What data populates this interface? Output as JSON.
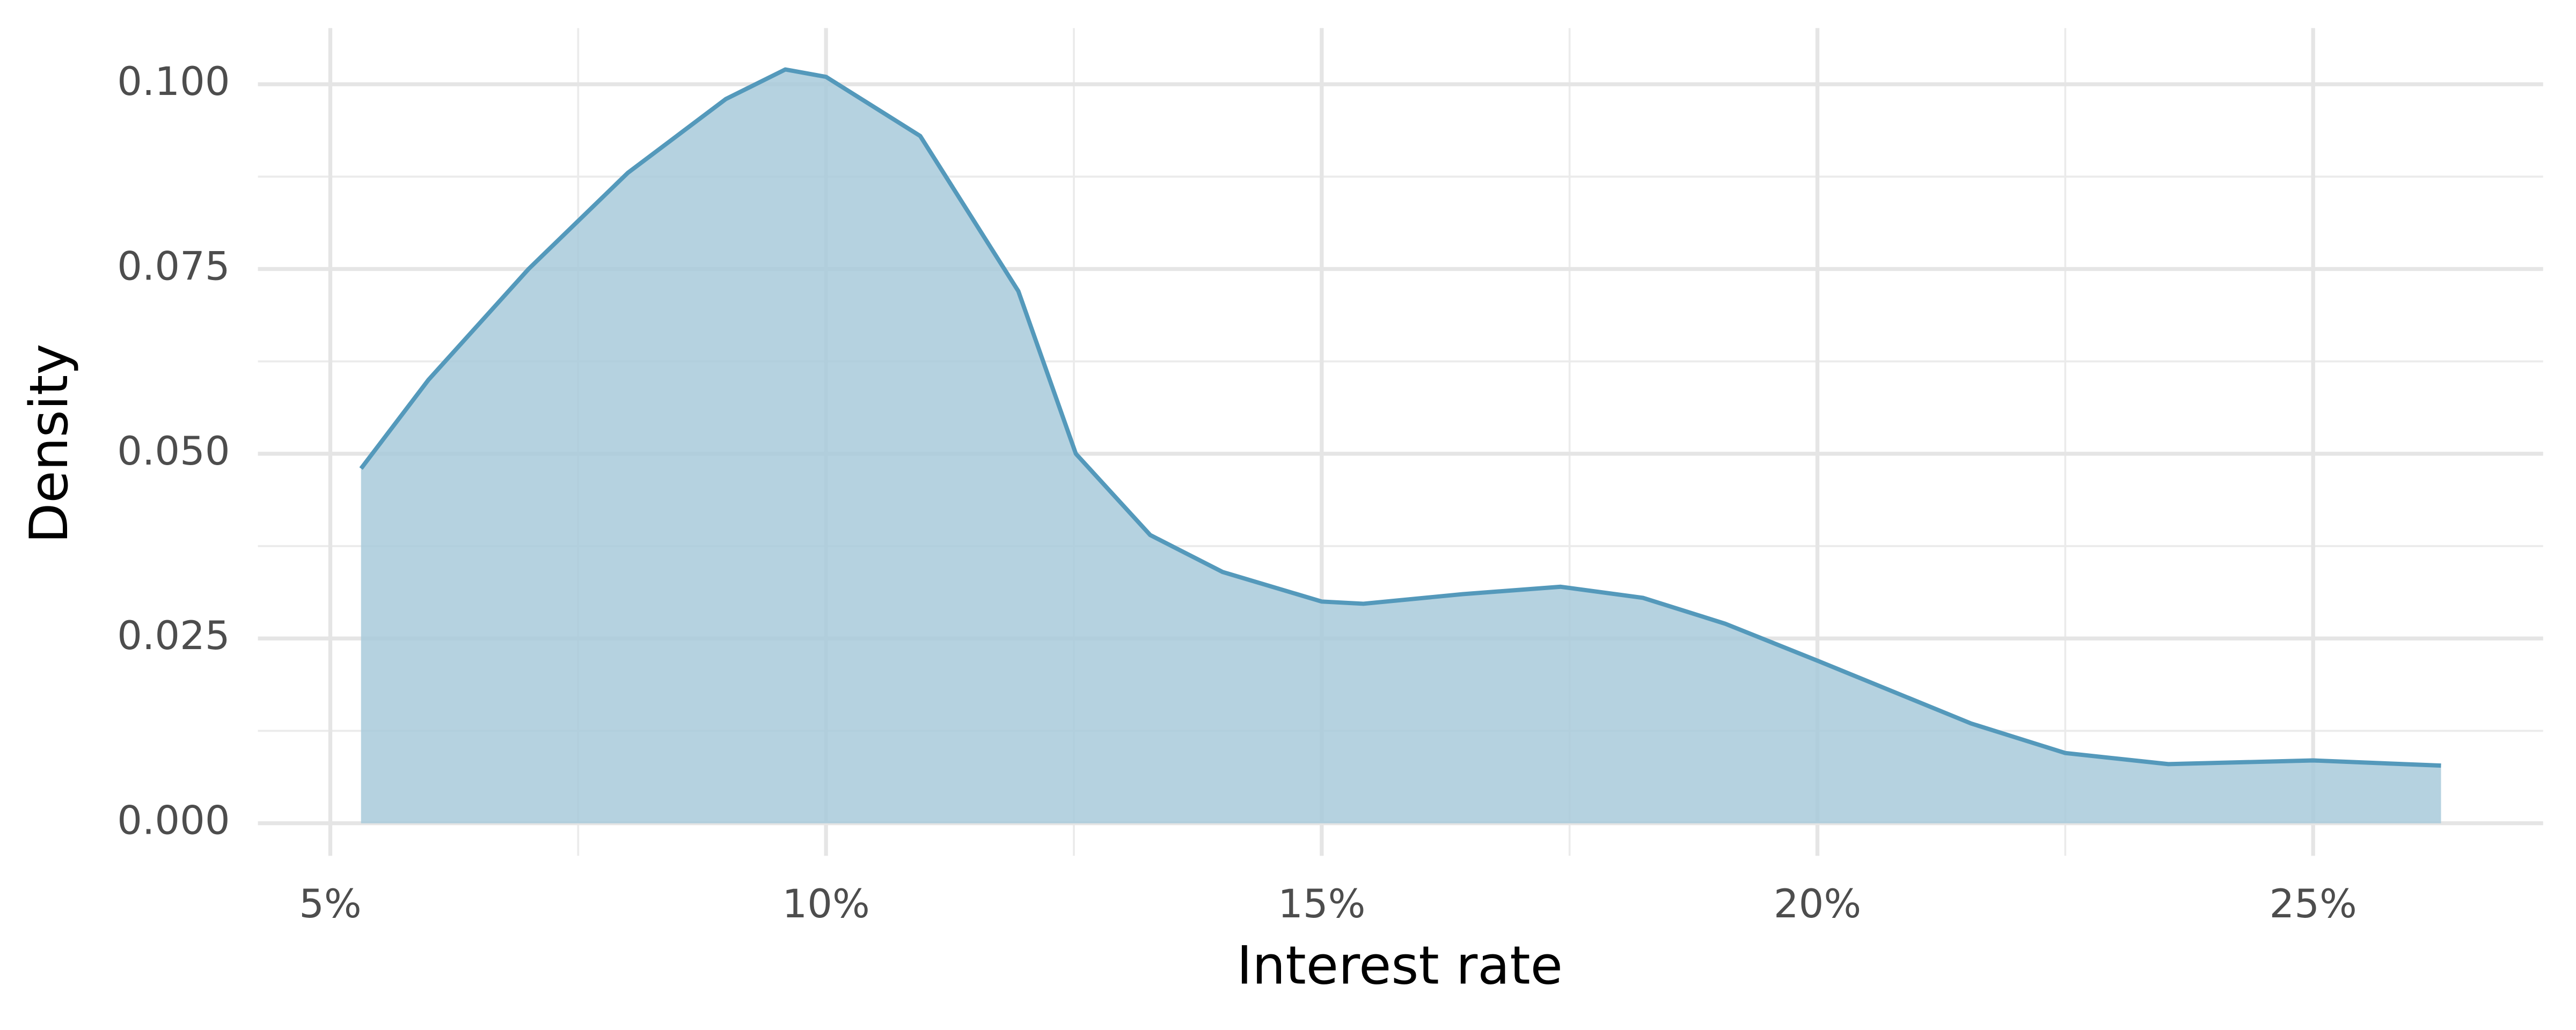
{
  "chart_data": {
    "type": "area",
    "x_label": "Interest rate",
    "y_label": "Density",
    "x": [
      5.31,
      5.99,
      7.0,
      8.0,
      8.99,
      9.59,
      10.0,
      10.95,
      11.94,
      12.52,
      13.27,
      14.0,
      15.0,
      15.42,
      16.42,
      17.41,
      18.24,
      19.07,
      20.0,
      21.55,
      22.5,
      23.54,
      25.0,
      26.29
    ],
    "series": [
      {
        "color": "#5499bb",
        "fill": "#a8cadb",
        "values": [
          0.048,
          0.06,
          0.075,
          0.088,
          0.098,
          0.102,
          0.101,
          0.093,
          0.072,
          0.05,
          0.039,
          0.034,
          0.03,
          0.0297,
          0.031,
          0.032,
          0.0305,
          0.027,
          0.022,
          0.0135,
          0.0095,
          0.008,
          0.0085,
          0.0078
        ]
      }
    ],
    "xlim": [
      4.27,
      27.32
    ],
    "ylim": [
      -0.0044,
      0.1076
    ],
    "xticks": [
      {
        "value": 5,
        "label": "5%"
      },
      {
        "value": 10,
        "label": "10%"
      },
      {
        "value": 15,
        "label": "15%"
      },
      {
        "value": 20,
        "label": "20%"
      },
      {
        "value": 25,
        "label": "25%"
      }
    ],
    "yticks": [
      {
        "value": 0,
        "label": "0.000"
      },
      {
        "value": 0.025,
        "label": "0.025"
      },
      {
        "value": 0.05,
        "label": "0.050"
      },
      {
        "value": 0.075,
        "label": "0.075"
      },
      {
        "value": 0.1,
        "label": "0.100"
      }
    ],
    "x_minor_grid": [
      7.5,
      12.5,
      17.5,
      22.5
    ],
    "y_minor_grid": [
      0.0125,
      0.0375,
      0.0625,
      0.0875
    ],
    "grid": true
  }
}
